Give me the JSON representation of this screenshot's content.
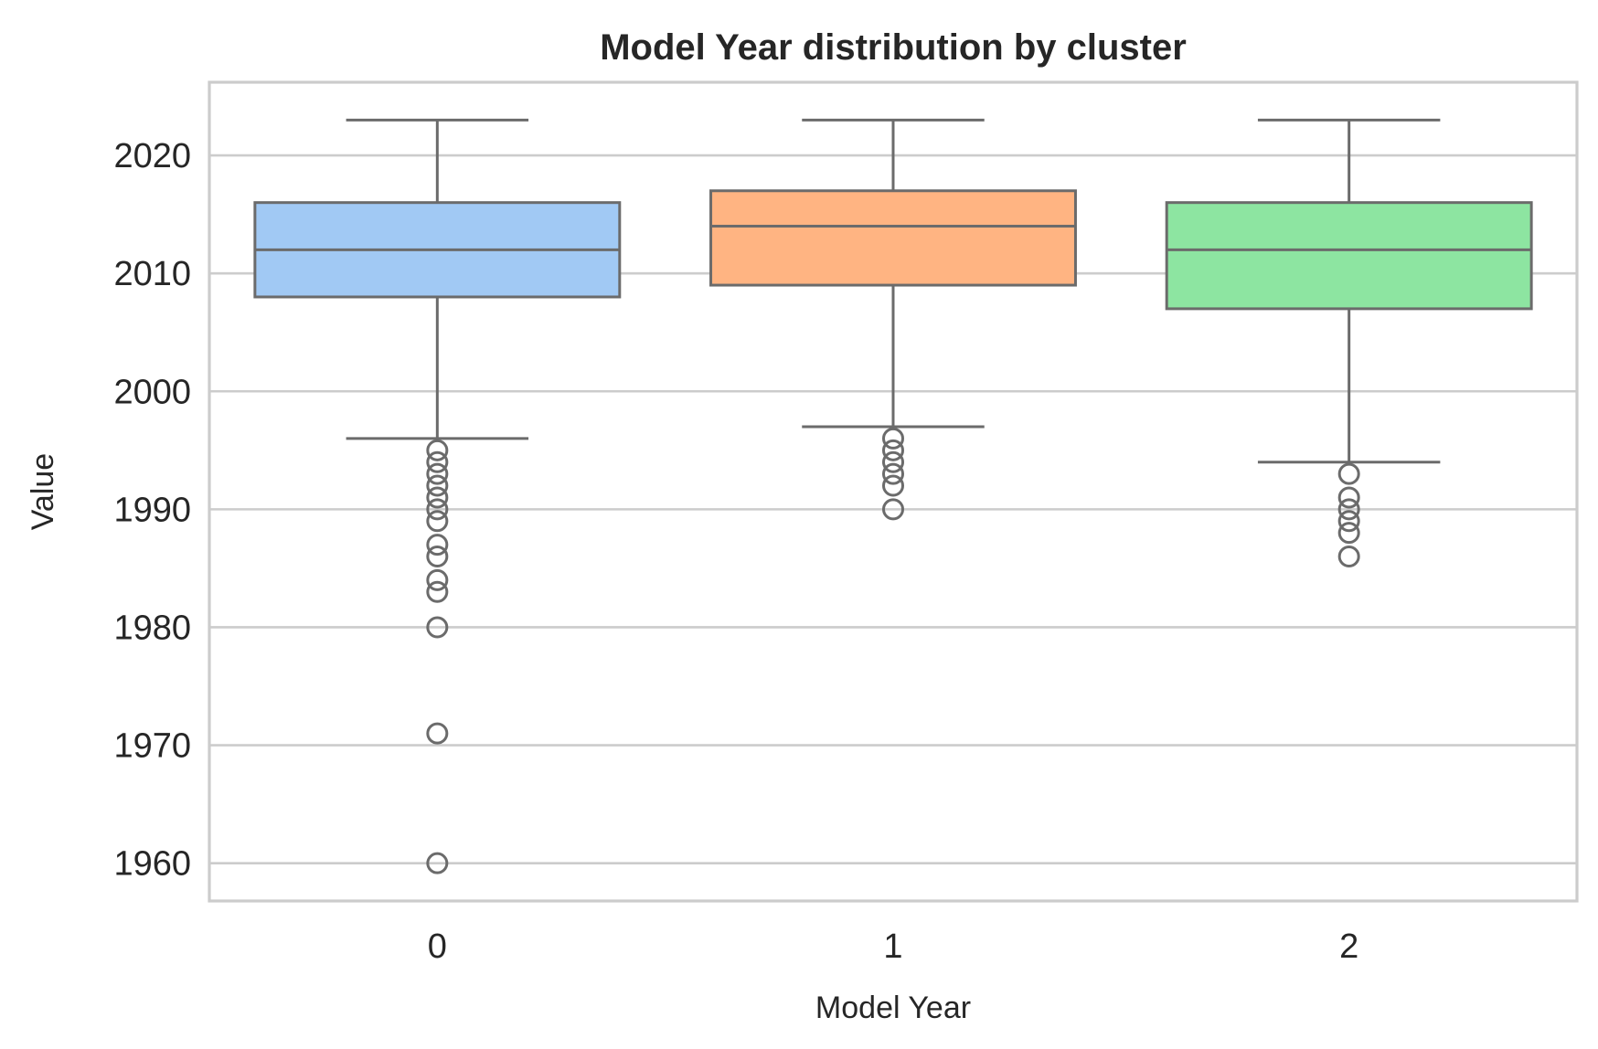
{
  "chart_data": {
    "type": "box",
    "title": "Model Year distribution by cluster",
    "xlabel": "Model Year",
    "ylabel": "Value",
    "ylim": [
      1956.8,
      2026.2
    ],
    "yticks": [
      1960,
      1970,
      1980,
      1990,
      2000,
      2010,
      2020
    ],
    "grid": true,
    "categories": [
      "0",
      "1",
      "2"
    ],
    "series": [
      {
        "category": "0",
        "color": "#a1c9f4",
        "whisker_low": 1996,
        "q1": 2008,
        "median": 2012,
        "q3": 2016,
        "whisker_high": 2023,
        "outliers": [
          1995,
          1994,
          1993,
          1992,
          1991,
          1990,
          1989,
          1987,
          1986,
          1984,
          1983,
          1980,
          1971,
          1960
        ]
      },
      {
        "category": "1",
        "color": "#ffb482",
        "whisker_low": 1997,
        "q1": 2009,
        "median": 2014,
        "q3": 2017,
        "whisker_high": 2023,
        "outliers": [
          1996,
          1995,
          1994,
          1993,
          1992,
          1990
        ]
      },
      {
        "category": "2",
        "color": "#8de5a1",
        "whisker_low": 1994,
        "q1": 2007,
        "median": 2012,
        "q3": 2016,
        "whisker_high": 2023,
        "outliers": [
          1993,
          1991,
          1990,
          1989,
          1988,
          1986
        ]
      }
    ]
  }
}
